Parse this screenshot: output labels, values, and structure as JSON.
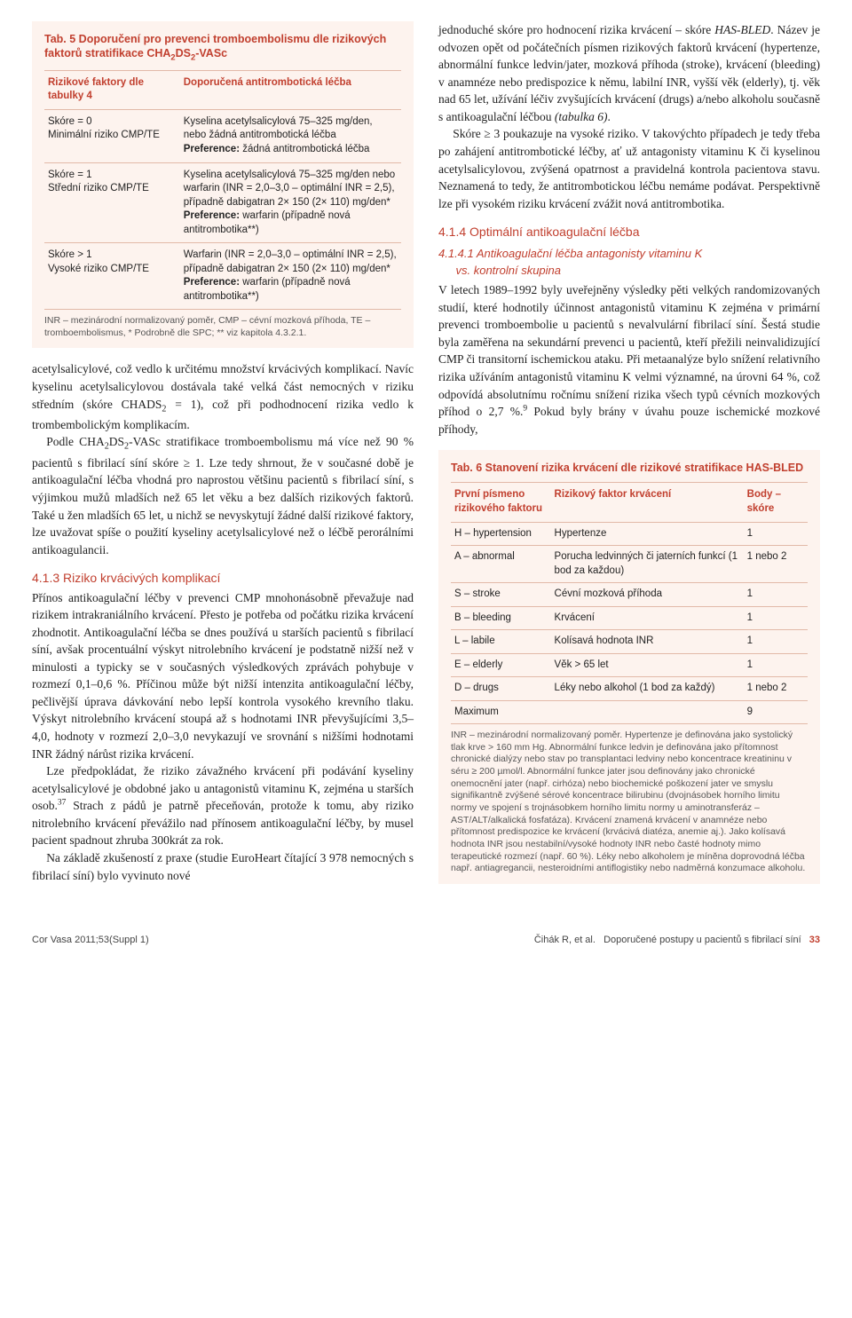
{
  "table5": {
    "title_html": "Tab. 5 Doporučení pro prevenci tromboembolismu dle rizikových faktorů stratifikace CHA<sub>2</sub>DS<sub>2</sub>-VASc",
    "header": [
      "Rizikové faktory dle tabulky 4",
      "Doporučená antitrombotická léčba"
    ],
    "rows": [
      {
        "c1_html": "Skóre = 0<br>Minimální riziko CMP/TE",
        "c2_html": "Kyselina acetylsalicylová 75–325 mg/den, nebo žádná antitrombotická léčba<br><b>Preference:</b> žádná antitrombotická léčba"
      },
      {
        "c1_html": "Skóre = 1<br>Střední riziko CMP/TE",
        "c2_html": "Kyselina acetylsalicylová 75–325 mg/den nebo warfarin (INR = 2,0–3,0 – optimální INR = 2,5), případně dabigatran 2× 150 (2× 110) mg/den*<br><b>Preference:</b> warfarin (případně nová antitrombotika**)"
      },
      {
        "c1_html": "Skóre > 1<br>Vysoké riziko CMP/TE",
        "c2_html": "Warfarin (INR = 2,0–3,0 – optimální INR = 2,5), případně dabigatran 2× 150 (2× 110) mg/den*<br><b>Preference:</b> warfarin (případně nová antitrombotika**)"
      }
    ],
    "note": "INR – mezinárodní normalizovaný poměr, CMP – cévní mozková příhoda, TE – tromboembolismus, * Podrobně dle SPC; ** viz kapitola 4.3.2.1."
  },
  "left_paras": [
    "acetylsalicylové, což vedlo k určitému množství krvácivých komplikací. Navíc kyselinu acetylsalicylovou dostávala také velká část nemocných v riziku středním (skóre CHADS<sub>2</sub> = 1), což při podhodnocení rizika vedlo k trombembolickým komplikacím.",
    "Podle CHA<sub>2</sub>DS<sub>2</sub>-VASc stratifikace tromboembolismu má více než 90 % pacientů s fibrilací síní skóre ≥ 1. Lze tedy shrnout, že v současné době je antikoagulační léčba vhodná pro naprostou většinu pacientů s fibrilací síní, s výjimkou mužů mladších než 65 let věku a bez dalších rizikových faktorů. Také u žen mladších 65 let, u nichž se nevyskytují žádné další rizikové faktory, lze uvažovat spíše o použití kyseliny acetylsalicylové než o léčbě perorálními antikoagulancii."
  ],
  "h_413": "4.1.3 Riziko krvácivých komplikací",
  "para_413a": "Přínos antikoagulační léčby v prevenci CMP mnohonásobně převažuje nad rizikem intrakraniálního krvácení. Přesto je potřeba od počátku rizika krvácení zhodnotit. Antikoagulační léčba se dnes používá u starších pacientů s fibrilací síní, avšak procentuální výskyt nitrolebního krvácení je podstatně nižší než v minulosti a typicky se v současných výsledkových zprávách pohybuje v rozmezí 0,1–0,6 %. Příčinou může být nižší intenzita antikoagulační léčby, pečlivější úprava dávkování nebo lepší kontrola vysokého krevního tlaku. Výskyt nitrolebního krvácení stoupá až s hodnotami INR převyšujícími 3,5–4,0, hodnoty v rozmezí 2,0–3,0 nevykazují ve srovnání s nižšími hodnotami INR žádný nárůst rizika krvácení.",
  "para_413b": "Lze předpokládat, že riziko závažného krvácení při podávání kyseliny acetylsalicylové je obdobné jako u antagonistů vitaminu K, zejména u starších osob.<sup class=\"ref\">37</sup> Strach z pádů je patrně přeceňován, protože k tomu, aby riziko nitrolebního krvácení převážilo nad přínosem antikoagulační léčby, by musel pacient spadnout zhruba 300krát za rok.",
  "para_413c": "Na základě zkušeností z praxe (studie EuroHeart čítající 3 978 nemocných s fibrilací síní) bylo vyvinuto nové",
  "right_top": "jednoduché skóre pro hodnocení rizika krvácení – skóre <i>HAS-BLED</i>. Název je odvozen opět od počátečních písmen rizikových faktorů krvácení (hypertenze, abnormální funkce ledvin/jater, mozková příhoda (stroke), krvácení (bleeding) v anamnéze nebo predispozice k němu, labilní INR, vyšší věk (elderly), tj. věk nad 65 let, užívání léčiv zvyšujících krvácení (drugs) a/nebo alkoholu současně s antikoagulační léčbou <i>(tabulka 6)</i>.",
  "right_top2": "Skóre ≥ 3 poukazuje na vysoké riziko. V takovýchto případech je tedy třeba po zahájení antitrombotické léčby, ať už antagonisty vitaminu K či kyselinou acetylsalicylovou, zvýšená opatrnost a pravidelná kontrola pacientova stavu. Neznamená to tedy, že antitrombotickou léčbu nemáme podávat. Perspektivně lze při vysokém riziku krvácení zvážit nová antitrombotika.",
  "h_414": "4.1.4 Optimální antikoagulační léčba",
  "h_4141_l1": "4.1.4.1 Antikoagulační léčba antagonisty vitaminu K",
  "h_4141_l2": "vs. kontrolní skupina",
  "para_4141": "V letech 1989–1992 byly uveřejněny výsledky pěti velkých randomizovaných studií, které hodnotily účinnost antagonistů vitaminu K zejména v primární prevenci tromboembolie u pacientů s nevalvulární fibrilací síní. Šestá studie byla zaměřena na sekundární prevenci u pacientů, kteří přežili neinvalidizující CMP či transitorní ischemickou ataku. Při metaanalýze bylo snížení relativního rizika užíváním antagonistů vitaminu K velmi významné, na úrovni 64 %, což odpovídá absolutnímu ročnímu snížení rizika všech typů cévních mozkových příhod o 2,7 %.<sup class=\"ref\">9</sup> Pokud byly brány v úvahu pouze ischemické mozkové příhody,",
  "table6": {
    "title": "Tab. 6 Stanovení rizika krvácení dle rizikové stratifikace HAS-BLED",
    "header": [
      "První písmeno rizikového faktoru",
      "Rizikový faktor krvácení",
      "Body – skóre"
    ],
    "rows": [
      [
        "H – hypertension",
        "Hypertenze",
        "1"
      ],
      [
        "A – abnormal",
        "Porucha ledvinných či jaterních funkcí (1 bod za každou)",
        "1 nebo 2"
      ],
      [
        "S – stroke",
        "Cévní mozková příhoda",
        "1"
      ],
      [
        "B – bleeding",
        "Krvácení",
        "1"
      ],
      [
        "L – labile",
        "Kolísavá hodnota INR",
        "1"
      ],
      [
        "E – elderly",
        "Věk > 65 let",
        "1"
      ],
      [
        "D – drugs",
        "Léky nebo alkohol (1 bod za každý)",
        "1 nebo 2"
      ],
      [
        "Maximum",
        "",
        "9"
      ]
    ],
    "note": "INR – mezinárodní normalizovaný poměr. Hypertenze je definována jako systolický tlak krve > 160 mm Hg. Abnormální funkce ledvin je definována jako přítomnost chronické dialýzy nebo stav po transplantaci ledviny nebo koncentrace kreatininu v séru ≥ 200 µmol/l. Abnormální funkce jater jsou definovány jako chronické onemocnění jater (např. cirhóza) nebo biochemické poškození jater ve smyslu signifikantně zvýšené sérové koncentrace bilirubinu (dvojnásobek horního limitu normy ve spojení s trojnásobkem horního limitu normy u aminotransferáz – AST/ALT/alkalická fosfatáza). Krvácení znamená krvácení v anamnéze nebo přítomnost predispozice ke krvácení (krvácivá diatéza, anemie aj.). Jako kolísavá hodnota INR jsou nestabilní/vysoké hodnoty INR nebo časté hodnoty mimo terapeutické rozmezí (např. 60 %). Léky nebo alkoholem je míněna doprovodná léčba např. antiagregancii, nesteroidními antiflogistiky nebo nadměrná konzumace alkoholu."
  },
  "footer": {
    "left": "Cor Vasa 2011;53(Suppl 1)",
    "right_a": "Čihák R, et al.",
    "right_b": "Doporučené postupy u pacientů s fibrilací síní",
    "page": "33"
  }
}
